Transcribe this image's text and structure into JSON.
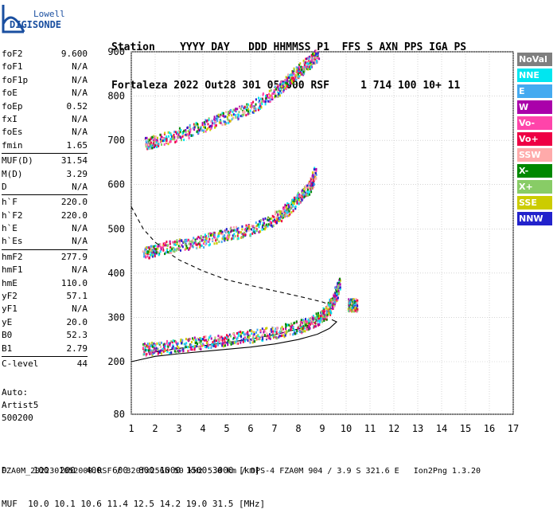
{
  "logo": {
    "line1": "Lowell",
    "line2": "DIGISONDE",
    "color": "#1a4fa0"
  },
  "header": {
    "line1": "Station    YYYY DAY   DDD HHMMSS P1  FFS S AXN PPS IGA PS",
    "line2": "Fortaleza 2022 Out28 301 052000 RSF     1 714 100 10+ 11"
  },
  "params": [
    {
      "name": "foF2",
      "value": "9.600"
    },
    {
      "name": "foF1",
      "value": "N/A"
    },
    {
      "name": "foF1p",
      "value": "N/A"
    },
    {
      "name": "foE",
      "value": "N/A"
    },
    {
      "name": "foEp",
      "value": "0.52"
    },
    {
      "name": "fxI",
      "value": "N/A"
    },
    {
      "name": "foEs",
      "value": "N/A"
    },
    {
      "name": "fmin",
      "value": "1.65"
    },
    {
      "sep": true
    },
    {
      "name": "MUF(D)",
      "value": "31.54"
    },
    {
      "name": "M(D)",
      "value": "3.29"
    },
    {
      "name": "D",
      "value": "N/A"
    },
    {
      "sep": true
    },
    {
      "name": "h`F",
      "value": "220.0"
    },
    {
      "name": "h`F2",
      "value": "220.0"
    },
    {
      "name": "h`E",
      "value": "N/A"
    },
    {
      "name": "h`Es",
      "value": "N/A"
    },
    {
      "sep": true
    },
    {
      "name": "hmF2",
      "value": "277.9"
    },
    {
      "name": "hmF1",
      "value": "N/A"
    },
    {
      "name": "hmE",
      "value": "110.0"
    },
    {
      "name": "yF2",
      "value": "57.1"
    },
    {
      "name": "yF1",
      "value": "N/A"
    },
    {
      "name": "yE",
      "value": "20.0"
    },
    {
      "name": "B0",
      "value": "52.3"
    },
    {
      "name": "B1",
      "value": "2.79"
    },
    {
      "sep": true
    },
    {
      "name": "C-level",
      "value": "44"
    }
  ],
  "auto": {
    "line1": "Auto:",
    "line2": "Artist5",
    "line3": "500200"
  },
  "legend": [
    {
      "label": "NoVal",
      "color": "#7f7f7f"
    },
    {
      "label": "NNE",
      "color": "#00e6f0"
    },
    {
      "label": "E",
      "color": "#44aaf0"
    },
    {
      "label": "W",
      "color": "#aa00aa"
    },
    {
      "label": "Vo-",
      "color": "#ff44aa"
    },
    {
      "label": "Vo+",
      "color": "#ee0044"
    },
    {
      "label": "SSW",
      "color": "#ffaaaa"
    },
    {
      "label": "X-",
      "color": "#008800"
    },
    {
      "label": "X+",
      "color": "#88cc66"
    },
    {
      "label": "SSE",
      "color": "#cccc00"
    },
    {
      "label": "NNW",
      "color": "#2222cc"
    }
  ],
  "footer": {
    "line1": "D     100  200  400  600  800 1000 1500 3000 [km]",
    "line2": "MUF  10.0 10.1 10.6 11.4 12.5 14.2 19.0 31.5 [MHz]",
    "line3": "FZA0M_2022301052000.RSF / 320fx256h 50 kHz 5.0 km / DPS-4 FZA0M 904 / 3.9 S 321.6 E   Ion2Png 1.3.20"
  },
  "chart_data": {
    "type": "scatter",
    "xlim": [
      1,
      17
    ],
    "ylim": [
      80,
      900
    ],
    "xticks": [
      1,
      2,
      3,
      4,
      5,
      6,
      7,
      8,
      9,
      10,
      11,
      12,
      13,
      14,
      15,
      16,
      17
    ],
    "yticks": [
      80,
      200,
      300,
      400,
      500,
      600,
      700,
      800,
      900
    ],
    "grid": true,
    "xlabel": "",
    "ylabel": "",
    "traces": [
      {
        "name": "",
        "x": [
          1.6,
          2,
          3,
          4,
          5,
          6,
          7,
          7.5,
          8,
          8.5,
          8.8
        ],
        "y": [
          695,
          700,
          715,
          735,
          755,
          775,
          810,
          835,
          860,
          880,
          895
        ]
      },
      {
        "name": "",
        "x": [
          1.5,
          2,
          3,
          4,
          5,
          6,
          7,
          7.5,
          8,
          8.5,
          8.7
        ],
        "y": [
          445,
          455,
          465,
          475,
          490,
          500,
          525,
          545,
          570,
          600,
          630
        ]
      },
      {
        "name": "",
        "x": [
          1.5,
          2,
          3,
          4,
          5,
          6,
          7,
          8,
          8.5,
          9,
          9.3,
          9.5,
          9.7
        ],
        "y": [
          230,
          232,
          238,
          245,
          252,
          260,
          268,
          280,
          290,
          305,
          325,
          345,
          380
        ]
      },
      {
        "name": "",
        "x": [
          10.1,
          10.2,
          10.3,
          10.4
        ],
        "y": [
          330,
          330,
          330,
          330
        ]
      }
    ],
    "model_curves": [
      {
        "style": "solid",
        "x": [
          1,
          2,
          3,
          4,
          5,
          6,
          7,
          8,
          8.8,
          9.3,
          9.5,
          9.6,
          9.4
        ],
        "y": [
          200,
          212,
          218,
          223,
          228,
          233,
          240,
          250,
          262,
          275,
          285,
          290,
          295
        ]
      },
      {
        "style": "dashed",
        "x": [
          1,
          1.5,
          2,
          2.5,
          3,
          4,
          5,
          6,
          7,
          8,
          9,
          9.5
        ],
        "y": [
          550,
          500,
          470,
          448,
          430,
          405,
          385,
          372,
          360,
          348,
          335,
          325
        ]
      },
      {
        "style": "solid",
        "x": [
          1.8,
          2,
          3,
          4,
          5,
          6,
          7,
          8,
          8.5,
          9,
          9.4
        ],
        "y": [
          220,
          222,
          230,
          236,
          243,
          251,
          261,
          274,
          284,
          298,
          325
        ]
      }
    ]
  }
}
